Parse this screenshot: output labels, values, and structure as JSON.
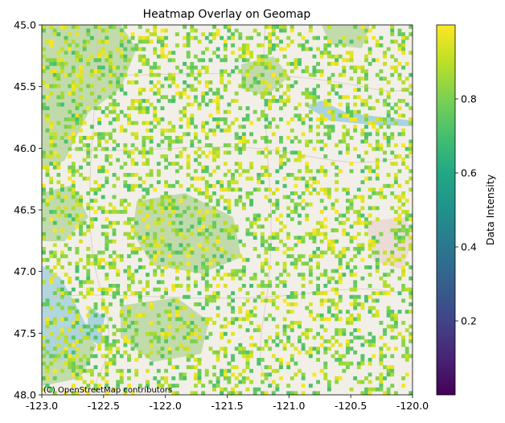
{
  "chart_data": {
    "type": "heatmap",
    "title": "Heatmap Overlay on Geomap",
    "xlim": [
      -123.0,
      -120.0
    ],
    "ylim": [
      45.0,
      48.0
    ],
    "y_inverted": true,
    "x_ticks": [
      "-123.0",
      "-122.5",
      "-122.0",
      "-121.5",
      "-121.0",
      "-120.5",
      "-120.0"
    ],
    "y_ticks": [
      "45.0",
      "45.5",
      "46.0",
      "46.5",
      "47.0",
      "47.5",
      "48.0"
    ],
    "grid": false,
    "colormap": "viridis",
    "colorbar": {
      "label": "Data Intensity",
      "range": [
        0.0,
        1.0
      ],
      "ticks": [
        "0.2",
        "0.4",
        "0.6",
        "0.8"
      ]
    },
    "cell_value_range_visible": [
      0.7,
      1.0
    ],
    "basemap_attribution": "(C) OpenStreetMap contributors"
  },
  "colors": {
    "basemap_land": "#f2efe9",
    "forest": "#b9d7a1",
    "water": "#aad3df",
    "urban": "#e9d6d0"
  }
}
